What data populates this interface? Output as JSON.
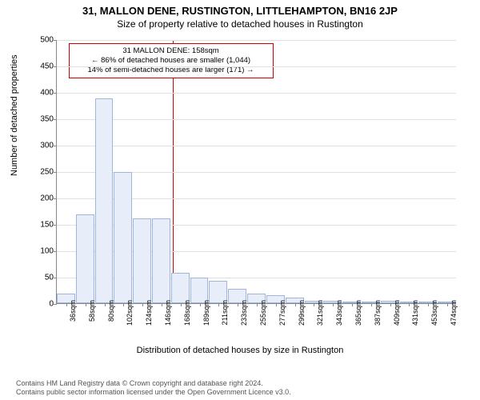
{
  "title_line1": "31, MALLON DENE, RUSTINGTON, LITTLEHAMPTON, BN16 2JP",
  "title_line2": "Size of property relative to detached houses in Rustington",
  "chart": {
    "type": "histogram",
    "ylabel": "Number of detached properties",
    "xlabel": "Distribution of detached houses by size in Rustington",
    "ylim": [
      0,
      500
    ],
    "ytick_step": 50,
    "yticks": [
      0,
      50,
      100,
      150,
      200,
      250,
      300,
      350,
      400,
      450,
      500
    ],
    "bar_fill": "#e8eef9",
    "bar_stroke": "#a0b4e0",
    "background_color": "#ffffff",
    "grid_color": "#e0e0e0",
    "axis_color": "#888888",
    "refline_color": "#d00000",
    "refline_x": 158,
    "categories": [
      "36sqm",
      "58sqm",
      "80sqm",
      "102sqm",
      "124sqm",
      "146sqm",
      "168sqm",
      "189sqm",
      "211sqm",
      "233sqm",
      "255sqm",
      "277sqm",
      "299sqm",
      "321sqm",
      "343sqm",
      "365sqm",
      "387sqm",
      "409sqm",
      "431sqm",
      "453sqm",
      "474sqm"
    ],
    "values": [
      18,
      168,
      388,
      248,
      160,
      160,
      58,
      48,
      42,
      28,
      18,
      15,
      10,
      5,
      5,
      3,
      3,
      5,
      2,
      2,
      2
    ],
    "annotation": {
      "line1": "31 MALLON DENE: 158sqm",
      "line2": "← 86% of detached houses are smaller (1,044)",
      "line3": "14% of semi-detached houses are larger (171) →"
    },
    "label_fontsize": 11,
    "tick_fontsize": 10
  },
  "footer_line1": "Contains HM Land Registry data © Crown copyright and database right 2024.",
  "footer_line2": "Contains public sector information licensed under the Open Government Licence v3.0."
}
